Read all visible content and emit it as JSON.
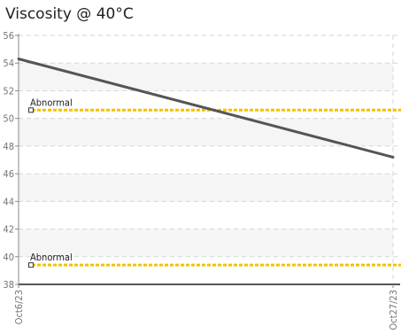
{
  "chart_data": {
    "type": "line",
    "title": "Viscosity @ 40°C",
    "xlabel": "",
    "ylabel": "",
    "x_ticks": [
      "Oct6/23",
      "Oct27/23"
    ],
    "y_ticks": [
      38,
      40,
      42,
      44,
      46,
      48,
      50,
      52,
      54,
      56
    ],
    "ylim": [
      38,
      56
    ],
    "grid": true,
    "series": [
      {
        "x": [
          "Oct6/23",
          "Oct27/23"
        ],
        "values": [
          54.3,
          47.2
        ],
        "color": "#555555"
      }
    ],
    "limits": [
      {
        "label": "Abnormal",
        "value": 50.6,
        "color": "#f2c200"
      },
      {
        "label": "Abnormal",
        "value": 39.4,
        "color": "#f2c200"
      }
    ]
  }
}
